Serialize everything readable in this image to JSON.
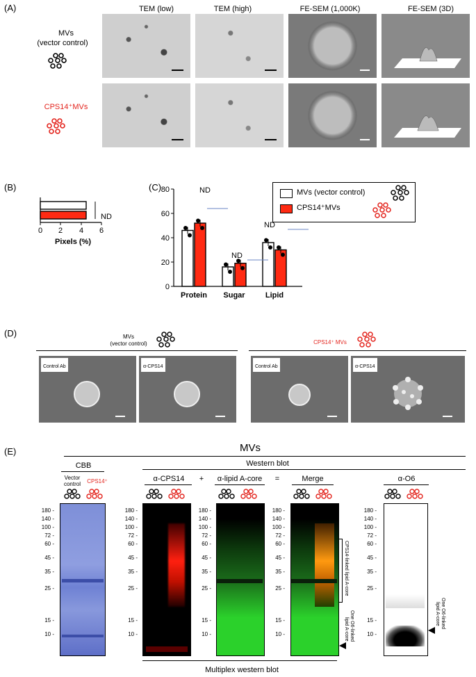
{
  "panelA": {
    "label": "(A)",
    "columns": [
      "TEM (low)",
      "TEM (high)",
      "FE-SEM (1,000K)",
      "FE-SEM (3D)"
    ],
    "rows": [
      {
        "label_line1": "MVs",
        "label_line2": "(vector control)"
      },
      {
        "label_line1": "CPS14⁺MVs",
        "label_line2": ""
      }
    ]
  },
  "panelB": {
    "label": "(B)",
    "xlabel": "Pixels (%)",
    "ticks": [
      "0",
      "2",
      "4",
      "6"
    ],
    "annotation": "ND",
    "bars": [
      {
        "value": 4.5,
        "color": "#ffffff"
      },
      {
        "value": 4.5,
        "color": "#ff2a12"
      }
    ],
    "xlim": [
      0,
      6
    ]
  },
  "panelC": {
    "label": "(C)",
    "legend": [
      "MVs (vector control)",
      "CPS14⁺MVs"
    ],
    "annotations": [
      "ND",
      "ND",
      "ND"
    ]
  },
  "chart_data": {
    "type": "bar",
    "categories": [
      "Protein",
      "Sugar",
      "Lipid"
    ],
    "series": [
      {
        "name": "MVs (vector control)",
        "values": [
          46,
          16,
          36
        ],
        "color": "#ffffff"
      },
      {
        "name": "CPS14⁺MVs",
        "values": [
          52,
          19,
          30
        ],
        "color": "#ff2a12"
      }
    ],
    "ylim": [
      0,
      80
    ],
    "yticks": [
      "0",
      "20",
      "40",
      "60",
      "80"
    ]
  },
  "panelD": {
    "label": "(D)",
    "group_left_line1": "MVs",
    "group_left_line2": "(vector control)",
    "group_right": "CPS14⁺ MVs",
    "images": [
      "Control Ab",
      "α-CPS14",
      "Control Ab",
      "α-CPS14"
    ]
  },
  "panelE": {
    "label": "(E)",
    "title": "MVs",
    "cbb": "CBB",
    "cbb_lane1_line1": "Vector",
    "cbb_lane1_line2": "control",
    "cbb_lane2": "CPS14⁺",
    "western": "Western blot",
    "blot1": "α-CPS14",
    "plus": "+",
    "blot2": "α-lipid A-core",
    "equals": "=",
    "blot3": "Merge",
    "blot4": "α-O6",
    "multiplex": "Multiplex western blot",
    "ladder_full": [
      "180",
      "140",
      "100",
      "72",
      "60",
      "45",
      "35",
      "25",
      "15",
      "10"
    ],
    "ladder_o6": [
      "180",
      "140",
      "100",
      "72",
      "60",
      "45",
      "35",
      "25",
      "15",
      "10"
    ],
    "ann_cps": "CPS14-linked lipid A-core",
    "ann_o6_line1": "One O6-linked",
    "ann_o6_line2": "lipid A-core"
  },
  "colors": {
    "red": "#e3221b",
    "bar_red": "#ff2a12",
    "green": "#2bd12b"
  }
}
